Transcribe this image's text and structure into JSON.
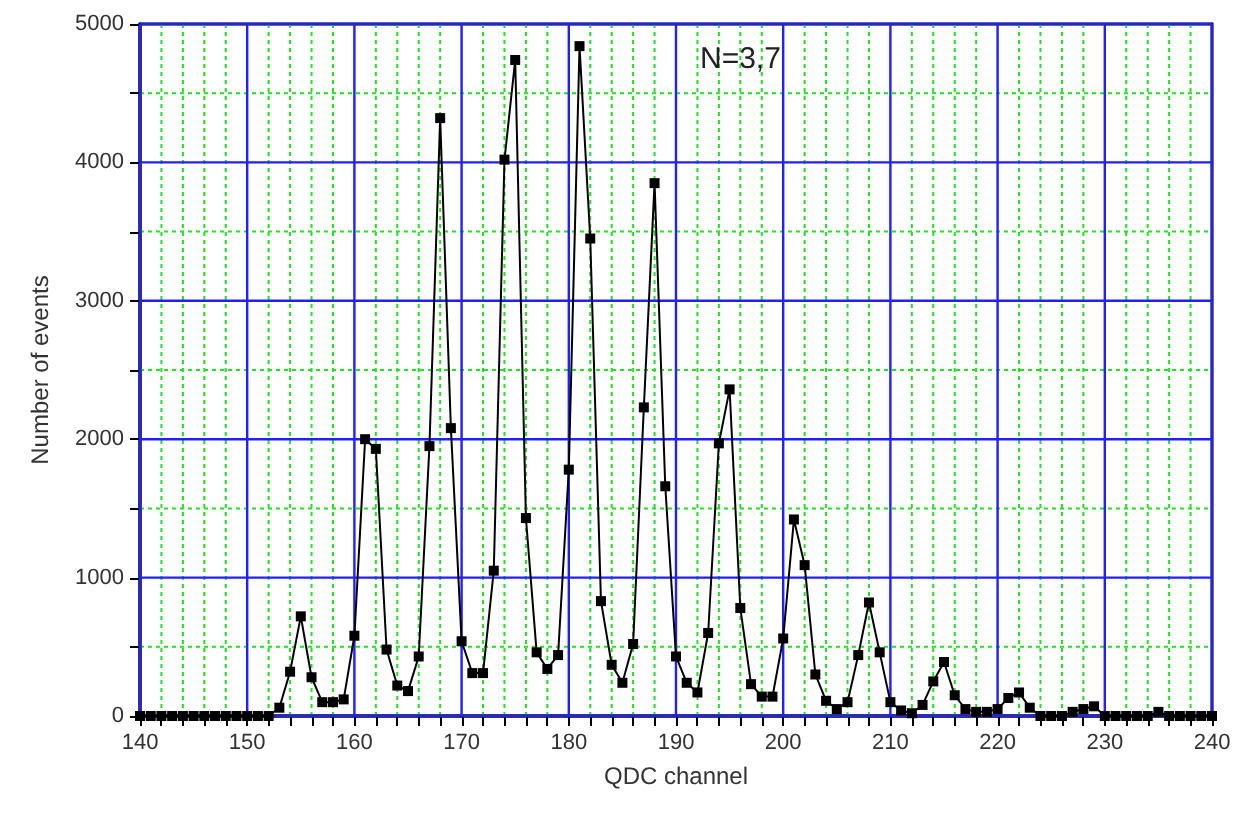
{
  "chart_data": {
    "type": "line",
    "xlabel": "QDC channel",
    "ylabel": "Number of events",
    "annotations": [
      "N=3,7"
    ],
    "x": [
      140,
      141,
      142,
      143,
      144,
      145,
      146,
      147,
      148,
      149,
      150,
      151,
      152,
      153,
      154,
      155,
      156,
      157,
      158,
      159,
      160,
      161,
      162,
      163,
      164,
      165,
      166,
      167,
      168,
      169,
      170,
      171,
      172,
      173,
      174,
      175,
      176,
      177,
      178,
      179,
      180,
      181,
      182,
      183,
      184,
      185,
      186,
      187,
      188,
      189,
      190,
      191,
      192,
      193,
      194,
      195,
      196,
      197,
      198,
      199,
      200,
      201,
      202,
      203,
      204,
      205,
      206,
      207,
      208,
      209,
      210,
      211,
      212,
      213,
      214,
      215,
      216,
      217,
      218,
      219,
      220,
      221,
      222,
      223,
      224,
      225,
      226,
      227,
      228,
      229,
      230,
      231,
      232,
      233,
      234,
      235,
      236,
      237,
      238,
      239,
      240
    ],
    "series": [
      {
        "color": "#000000",
        "values": [
          0,
          0,
          0,
          0,
          0,
          0,
          0,
          0,
          0,
          0,
          0,
          0,
          0,
          60,
          320,
          720,
          280,
          100,
          100,
          120,
          580,
          2000,
          1930,
          480,
          220,
          180,
          430,
          1950,
          4320,
          2080,
          540,
          310,
          310,
          1050,
          4020,
          4740,
          1430,
          460,
          340,
          440,
          1780,
          4840,
          3450,
          830,
          370,
          240,
          520,
          2230,
          3850,
          1660,
          430,
          240,
          170,
          600,
          1970,
          2360,
          780,
          230,
          140,
          140,
          560,
          1420,
          1090,
          300,
          110,
          50,
          100,
          440,
          820,
          460,
          100,
          40,
          20,
          80,
          250,
          390,
          150,
          50,
          30,
          30,
          50,
          130,
          170,
          60,
          0,
          0,
          0,
          30,
          50,
          70,
          0,
          0,
          0,
          0,
          0,
          30,
          0,
          0,
          0,
          0,
          0
        ]
      }
    ],
    "xlim": [
      140,
      240
    ],
    "xticks": [
      140,
      {
        "value": 142,
        "label": null
      },
      {
        "value": 144,
        "label": null
      },
      {
        "value": 146,
        "label": null
      },
      {
        "value": 148,
        "label": null
      },
      150,
      {
        "value": 152,
        "label": null
      },
      {
        "value": 154,
        "label": null
      },
      {
        "value": 156,
        "label": null
      },
      {
        "value": 158,
        "label": null
      },
      160,
      {
        "value": 162,
        "label": null
      },
      {
        "value": 164,
        "label": null
      },
      {
        "value": 166,
        "label": null
      },
      {
        "value": 168,
        "label": null
      },
      170,
      {
        "value": 172,
        "label": null
      },
      {
        "value": 174,
        "label": null
      },
      {
        "value": 176,
        "label": null
      },
      {
        "value": 178,
        "label": null
      },
      180,
      {
        "value": 182,
        "label": null
      },
      {
        "value": 184,
        "label": null
      },
      {
        "value": 186,
        "label": null
      },
      {
        "value": 188,
        "label": null
      },
      190,
      {
        "value": 192,
        "label": null
      },
      {
        "value": 194,
        "label": null
      },
      {
        "value": 196,
        "label": null
      },
      {
        "value": 198,
        "label": null
      },
      200,
      {
        "value": 202,
        "label": null
      },
      {
        "value": 204,
        "label": null
      },
      {
        "value": 206,
        "label": null
      },
      {
        "value": 208,
        "label": null
      },
      210,
      {
        "value": 212,
        "label": null
      },
      {
        "value": 214,
        "label": null
      },
      {
        "value": 216,
        "label": null
      },
      {
        "value": 218,
        "label": null
      },
      220,
      {
        "value": 222,
        "label": null
      },
      {
        "value": 224,
        "label": null
      },
      {
        "value": 226,
        "label": null
      },
      {
        "value": 228,
        "label": null
      },
      230,
      {
        "value": 232,
        "label": null
      },
      {
        "value": 234,
        "label": null
      },
      {
        "value": 236,
        "label": null
      },
      {
        "value": 238,
        "label": null
      },
      240
    ],
    "ylim": [
      0,
      5000
    ],
    "yticks": [
      0,
      {
        "value": 500,
        "label": null
      },
      1000,
      {
        "value": 1500,
        "label": null
      },
      2000,
      {
        "value": 2500,
        "label": null
      },
      3000,
      {
        "value": 3500,
        "label": null
      },
      4000,
      {
        "value": 4500,
        "label": null
      },
      5000
    ],
    "grid": true,
    "marker": "square",
    "line_style": "solid"
  }
}
